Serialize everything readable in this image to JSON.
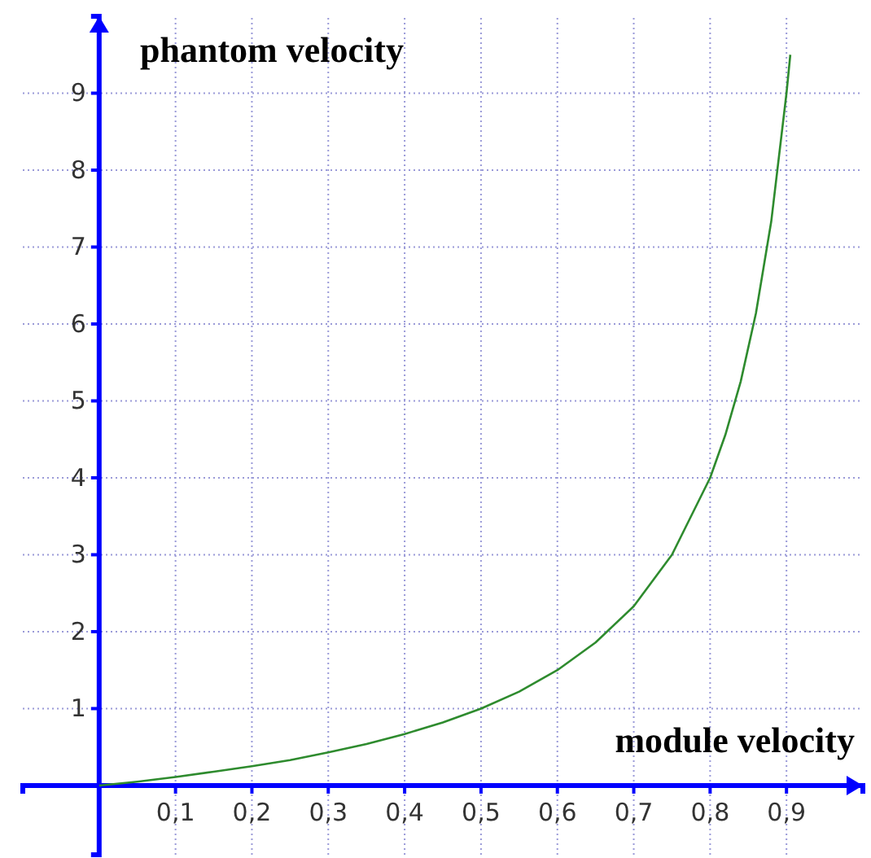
{
  "chart_data": {
    "type": "line",
    "xlabel": "module velocity",
    "ylabel": "phantom velocity",
    "x": [
      0,
      0.05,
      0.1,
      0.15,
      0.2,
      0.25,
      0.3,
      0.35,
      0.4,
      0.45,
      0.5,
      0.55,
      0.6,
      0.65,
      0.7,
      0.75,
      0.8,
      0.82,
      0.84,
      0.86,
      0.88,
      0.9,
      0.905
    ],
    "series": [
      {
        "color": "#2e8b2e",
        "values": [
          0,
          0.05,
          0.11,
          0.18,
          0.25,
          0.33,
          0.43,
          0.54,
          0.67,
          0.82,
          1,
          1.22,
          1.5,
          1.86,
          2.33,
          3,
          4,
          4.56,
          5.25,
          6.14,
          7.33,
          9,
          9.5
        ]
      }
    ],
    "xlim": [
      -0.1,
      1.0
    ],
    "ylim": [
      -0.9,
      10
    ],
    "xticks": [
      {
        "value": 0.1,
        "label": "0,1"
      },
      {
        "value": 0.2,
        "label": "0,2"
      },
      {
        "value": 0.3,
        "label": "0,3"
      },
      {
        "value": 0.4,
        "label": "0,4"
      },
      {
        "value": 0.5,
        "label": "0,5"
      },
      {
        "value": 0.6,
        "label": "0,6"
      },
      {
        "value": 0.7,
        "label": "0,7"
      },
      {
        "value": 0.8,
        "label": "0,8"
      },
      {
        "value": 0.9,
        "label": "0,9"
      }
    ],
    "yticks": [
      1,
      2,
      3,
      4,
      5,
      6,
      7,
      8,
      9
    ],
    "grid": true,
    "marker": "none",
    "line_style": "solid"
  }
}
